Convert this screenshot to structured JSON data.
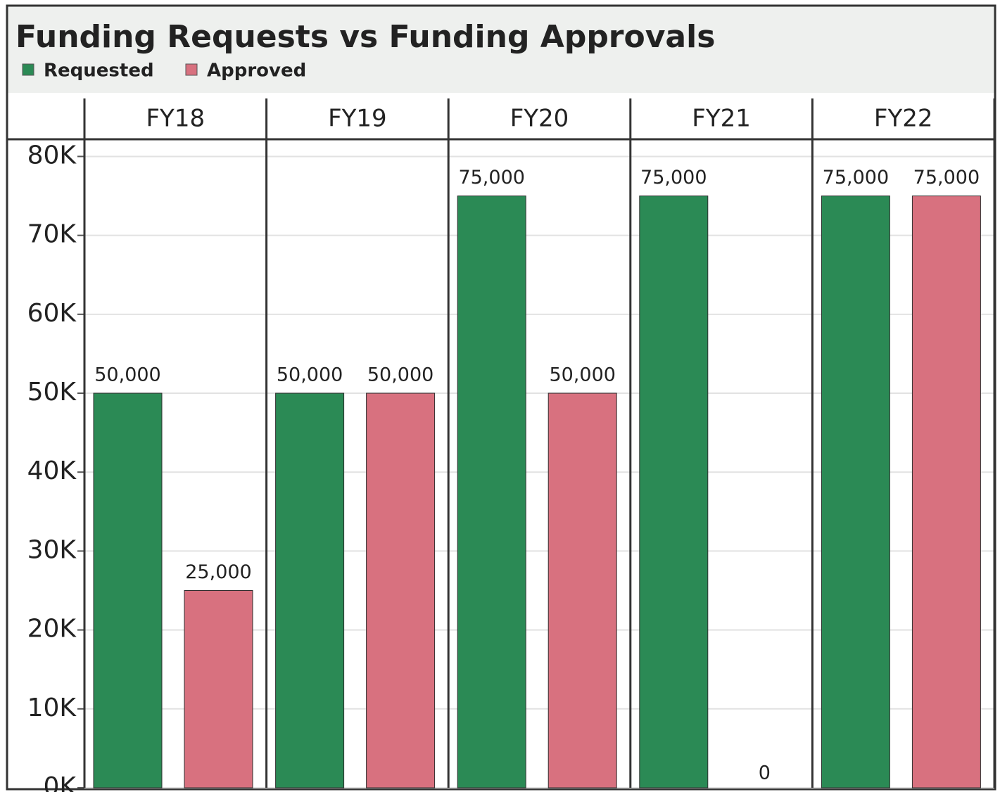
{
  "chart_data": {
    "type": "bar",
    "title": "Funding Requests vs Funding Approvals",
    "categories": [
      "FY18",
      "FY19",
      "FY20",
      "FY21",
      "FY22"
    ],
    "series": [
      {
        "name": "Requested",
        "color": "#2b8a55",
        "values": [
          50000,
          50000,
          75000,
          75000,
          75000
        ],
        "value_labels": [
          "50,000",
          "50,000",
          "75,000",
          "75,000",
          "75,000"
        ]
      },
      {
        "name": "Approved",
        "color": "#d8717f",
        "values": [
          25000,
          50000,
          50000,
          0,
          75000
        ],
        "value_labels": [
          "25,000",
          "50,000",
          "50,000",
          "0",
          "75,000"
        ]
      }
    ],
    "ylim": [
      0,
      82000
    ],
    "yticks": [
      {
        "value": 0,
        "label": "0K"
      },
      {
        "value": 10000,
        "label": "10K"
      },
      {
        "value": 20000,
        "label": "20K"
      },
      {
        "value": 30000,
        "label": "30K"
      },
      {
        "value": 40000,
        "label": "40K"
      },
      {
        "value": 50000,
        "label": "50K"
      },
      {
        "value": 60000,
        "label": "60K"
      },
      {
        "value": 70000,
        "label": "70K"
      },
      {
        "value": 80000,
        "label": "80K"
      }
    ],
    "grid": true
  }
}
